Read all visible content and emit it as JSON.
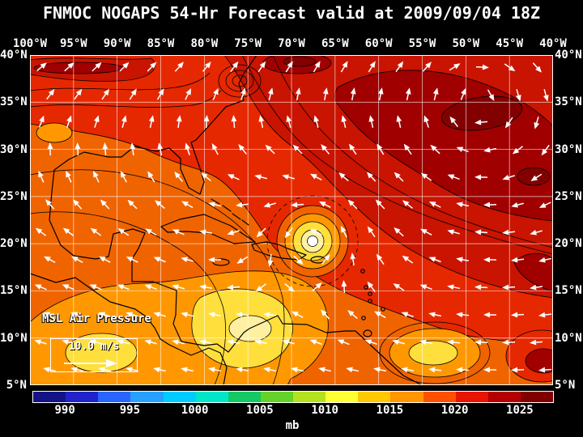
{
  "title": "FNMOC NOGAPS 54-Hr Forecast valid at 2009/09/04 18Z",
  "map": {
    "overlay_label": "MSL Air Pressure",
    "wind_scale": {
      "label": "10.0 m/s"
    },
    "lon_labels": [
      "100°W",
      "95°W",
      "90°W",
      "85°W",
      "80°W",
      "75°W",
      "70°W",
      "65°W",
      "60°W",
      "55°W",
      "50°W",
      "45°W",
      "40°W"
    ],
    "lat_labels": [
      "40°N",
      "35°N",
      "30°N",
      "25°N",
      "20°N",
      "15°N",
      "10°N",
      "5°N"
    ]
  },
  "colorbar": {
    "unit": "mb",
    "tick_labels": [
      "990",
      "995",
      "1000",
      "1005",
      "1010",
      "1015",
      "1020",
      "1025"
    ],
    "colors": [
      "#141486",
      "#2222cc",
      "#2a64ff",
      "#28a0ff",
      "#00ccff",
      "#00e6c8",
      "#14c864",
      "#64d228",
      "#b4e11e",
      "#ffff32",
      "#ffc800",
      "#ff9600",
      "#ff5000",
      "#e61400",
      "#b40000",
      "#800000"
    ]
  },
  "chart_data": {
    "type": "heatmap",
    "title": "MSL Air Pressure",
    "unit": "mb",
    "scale_ticks": [
      990,
      995,
      1000,
      1005,
      1010,
      1015,
      1020,
      1025
    ],
    "x_ticks_lon_west": [
      100,
      95,
      90,
      85,
      80,
      75,
      70,
      65,
      60,
      55,
      50,
      45,
      40
    ],
    "y_ticks_lat_north": [
      40,
      35,
      30,
      25,
      20,
      15,
      10,
      5
    ],
    "wind_reference_ms": 10.0
  }
}
